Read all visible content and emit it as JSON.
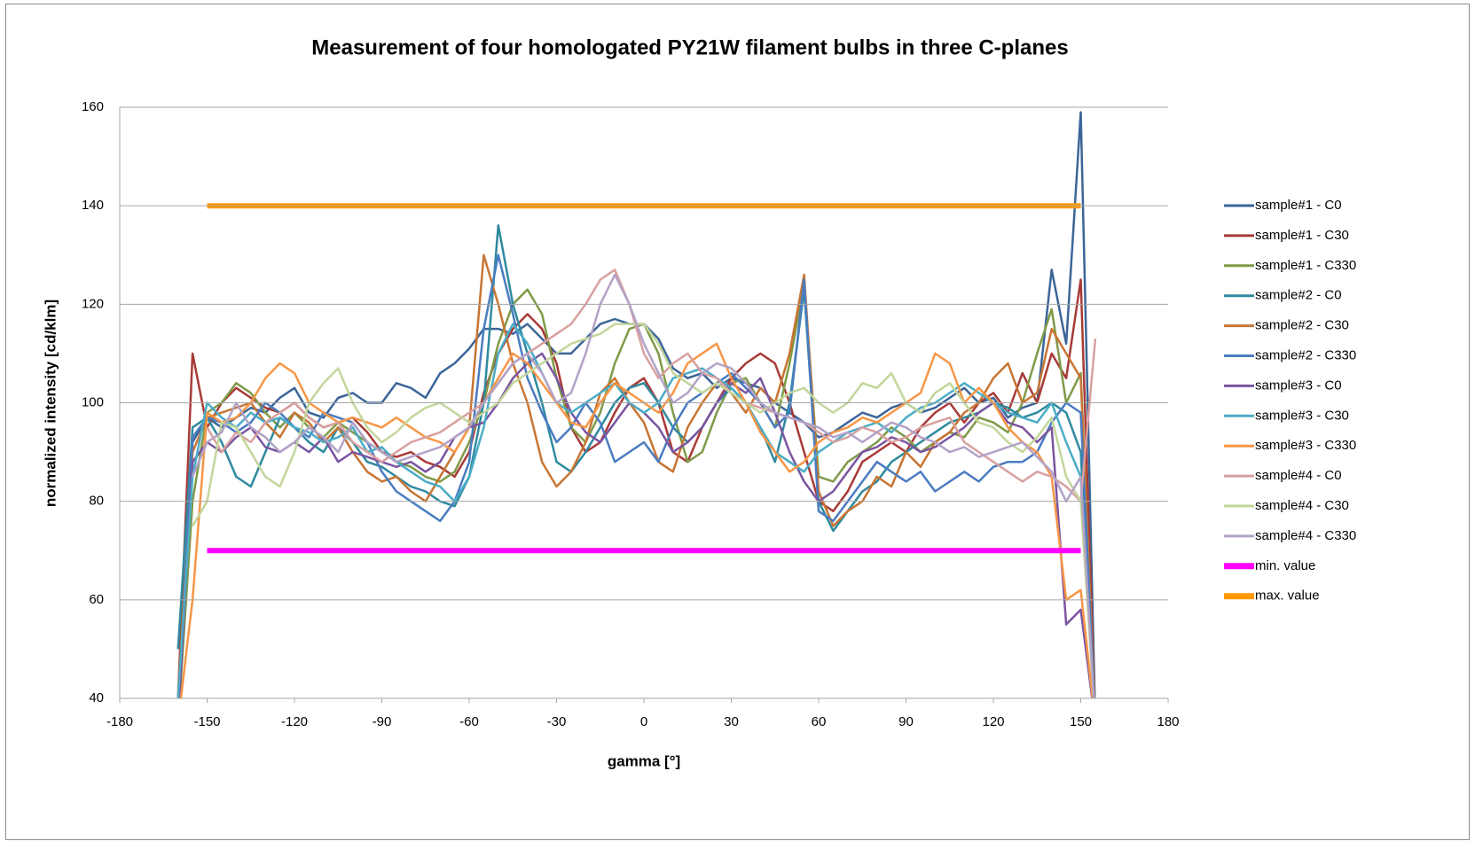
{
  "chart_data": {
    "type": "line",
    "title": "Measurement of four homologated PY21W filament bulbs in three C-planes",
    "x_label": "gamma [°]",
    "y_label": "normalized intensity [cd/klm]",
    "xlim": [
      -180,
      180
    ],
    "xticks": [
      -180,
      -150,
      -120,
      -90,
      -60,
      -30,
      0,
      30,
      60,
      90,
      120,
      150,
      180
    ],
    "ylim": [
      40,
      160
    ],
    "yticks": [
      40,
      60,
      80,
      100,
      120,
      140,
      160
    ],
    "grid": true,
    "legend": "right",
    "x": [
      -160,
      -155,
      -150,
      -145,
      -140,
      -135,
      -130,
      -125,
      -120,
      -115,
      -110,
      -105,
      -100,
      -95,
      -90,
      -85,
      -80,
      -75,
      -70,
      -65,
      -60,
      -55,
      -50,
      -45,
      -40,
      -35,
      -30,
      -25,
      -20,
      -15,
      -10,
      -5,
      0,
      5,
      10,
      15,
      20,
      25,
      30,
      35,
      40,
      45,
      50,
      55,
      60,
      65,
      70,
      75,
      80,
      85,
      90,
      95,
      100,
      105,
      110,
      115,
      120,
      125,
      130,
      135,
      140,
      145,
      150,
      155
    ],
    "series": [
      {
        "name": "sample#1 - C0",
        "color": "#3c6598",
        "values": [
          35,
          92,
          97,
          95,
          97,
          99,
          98,
          101,
          103,
          98,
          97,
          101,
          102,
          100,
          100,
          104,
          103,
          101,
          106,
          108,
          111,
          115,
          115,
          114,
          116,
          113,
          110,
          110,
          113,
          116,
          117,
          116,
          116,
          113,
          107,
          105,
          106,
          103,
          105,
          104,
          103,
          100,
          98,
          96,
          93,
          94,
          96,
          98,
          97,
          99,
          100,
          98,
          99,
          101,
          103,
          100,
          101,
          97,
          99,
          100,
          127,
          112,
          159,
          35
        ]
      },
      {
        "name": "sample#1 - C30",
        "color": "#a83a37",
        "values": [
          40,
          110,
          95,
          100,
          103,
          101,
          99,
          98,
          100,
          97,
          95,
          96,
          97,
          94,
          90,
          89,
          90,
          88,
          87,
          85,
          90,
          102,
          110,
          115,
          118,
          115,
          108,
          95,
          90,
          92,
          98,
          103,
          105,
          100,
          90,
          88,
          95,
          100,
          105,
          108,
          110,
          108,
          100,
          90,
          80,
          78,
          82,
          88,
          90,
          92,
          90,
          95,
          98,
          100,
          96,
          100,
          102,
          98,
          106,
          100,
          110,
          105,
          125,
          35
        ]
      },
      {
        "name": "sample#1 - C330",
        "color": "#7f9a48",
        "values": [
          35,
          80,
          98,
          100,
          104,
          102,
          98,
          95,
          98,
          95,
          93,
          96,
          94,
          92,
          90,
          88,
          87,
          85,
          84,
          86,
          92,
          100,
          112,
          120,
          123,
          118,
          105,
          95,
          92,
          98,
          108,
          115,
          116,
          110,
          98,
          88,
          90,
          98,
          104,
          105,
          100,
          95,
          108,
          124,
          85,
          84,
          88,
          90,
          92,
          95,
          93,
          90,
          92,
          94,
          93,
          97,
          96,
          94,
          100,
          110,
          119,
          100,
          106,
          35
        ]
      },
      {
        "name": "sample#2 - C0",
        "color": "#2f8a9f",
        "values": [
          50,
          95,
          97,
          92,
          85,
          83,
          90,
          97,
          95,
          92,
          90,
          95,
          92,
          88,
          87,
          85,
          83,
          82,
          80,
          79,
          85,
          100,
          136,
          120,
          110,
          100,
          88,
          86,
          90,
          95,
          100,
          103,
          104,
          100,
          95,
          92,
          95,
          100,
          103,
          100,
          95,
          88,
          100,
          123,
          80,
          74,
          78,
          82,
          84,
          88,
          90,
          92,
          94,
          96,
          97,
          98,
          100,
          99,
          97,
          98,
          100,
          98,
          90,
          35
        ]
      },
      {
        "name": "sample#2 - C30",
        "color": "#c87533",
        "values": [
          40,
          90,
          97,
          98,
          99,
          100,
          96,
          93,
          98,
          96,
          92,
          95,
          90,
          86,
          84,
          85,
          82,
          80,
          85,
          90,
          95,
          130,
          120,
          108,
          100,
          88,
          83,
          86,
          92,
          102,
          105,
          100,
          96,
          88,
          86,
          95,
          100,
          104,
          102,
          98,
          103,
          100,
          110,
          126,
          82,
          75,
          78,
          80,
          85,
          83,
          90,
          87,
          92,
          94,
          98,
          100,
          105,
          108,
          100,
          102,
          115,
          110,
          105,
          35
        ]
      },
      {
        "name": "sample#2 - C330",
        "color": "#4a7cc0",
        "values": [
          35,
          93,
          97,
          96,
          94,
          96,
          100,
          98,
          95,
          93,
          98,
          97,
          96,
          92,
          86,
          82,
          80,
          78,
          76,
          80,
          88,
          115,
          130,
          118,
          105,
          98,
          92,
          95,
          100,
          96,
          88,
          90,
          92,
          88,
          95,
          100,
          102,
          104,
          106,
          103,
          100,
          95,
          98,
          125,
          78,
          76,
          80,
          84,
          88,
          86,
          84,
          86,
          82,
          84,
          86,
          84,
          87,
          88,
          88,
          90,
          96,
          100,
          98,
          35
        ]
      },
      {
        "name": "sample#3 - C0",
        "color": "#7a55a0",
        "values": [
          35,
          88,
          92,
          90,
          93,
          95,
          91,
          90,
          92,
          90,
          93,
          88,
          90,
          89,
          88,
          87,
          88,
          86,
          88,
          93,
          95,
          96,
          100,
          105,
          108,
          110,
          105,
          98,
          94,
          92,
          96,
          100,
          98,
          95,
          90,
          92,
          95,
          100,
          104,
          102,
          105,
          98,
          90,
          84,
          80,
          82,
          86,
          90,
          91,
          93,
          92,
          90,
          91,
          93,
          95,
          98,
          100,
          96,
          95,
          92,
          95,
          55,
          58,
          35
        ]
      },
      {
        "name": "sample#3 - C30",
        "color": "#4bacc6",
        "values": [
          40,
          85,
          100,
          97,
          95,
          98,
          96,
          97,
          95,
          94,
          92,
          93,
          95,
          90,
          91,
          88,
          86,
          84,
          83,
          80,
          85,
          95,
          110,
          116,
          112,
          106,
          100,
          98,
          100,
          102,
          104,
          100,
          98,
          100,
          105,
          106,
          107,
          105,
          103,
          100,
          95,
          90,
          88,
          86,
          90,
          92,
          94,
          95,
          96,
          94,
          97,
          99,
          100,
          102,
          104,
          102,
          100,
          98,
          97,
          96,
          100,
          92,
          85,
          35
        ]
      },
      {
        "name": "sample#3 - C330",
        "color": "#f79646",
        "values": [
          35,
          60,
          98,
          96,
          97,
          100,
          105,
          108,
          106,
          100,
          98,
          96,
          97,
          96,
          95,
          97,
          95,
          93,
          92,
          90,
          95,
          100,
          105,
          110,
          108,
          104,
          100,
          96,
          95,
          100,
          104,
          102,
          100,
          98,
          102,
          108,
          110,
          112,
          105,
          100,
          94,
          90,
          86,
          88,
          92,
          94,
          95,
          97,
          96,
          98,
          100,
          102,
          110,
          108,
          100,
          103,
          100,
          95,
          92,
          90,
          85,
          60,
          62,
          35
        ]
      },
      {
        "name": "sample#4 - C0",
        "color": "#d9a0a0",
        "values": [
          null,
          null,
          95,
          90,
          94,
          92,
          96,
          98,
          100,
          97,
          95,
          96,
          92,
          90,
          88,
          90,
          92,
          93,
          94,
          96,
          98,
          100,
          104,
          108,
          110,
          112,
          114,
          116,
          120,
          125,
          127,
          120,
          110,
          105,
          108,
          110,
          106,
          105,
          102,
          100,
          99,
          98,
          97,
          96,
          94,
          92,
          93,
          95,
          94,
          92,
          93,
          95,
          96,
          97,
          92,
          90,
          88,
          86,
          84,
          86,
          85,
          83,
          80,
          113
        ]
      },
      {
        "name": "sample#4 - C30",
        "color": "#c3d69b",
        "values": [
          null,
          75,
          80,
          96,
          95,
          90,
          85,
          83,
          90,
          100,
          104,
          107,
          100,
          95,
          92,
          94,
          97,
          99,
          100,
          98,
          96,
          98,
          100,
          104,
          106,
          108,
          110,
          112,
          113,
          114,
          116,
          116,
          116,
          112,
          106,
          104,
          102,
          104,
          102,
          100,
          98,
          100,
          102,
          103,
          100,
          98,
          100,
          104,
          103,
          106,
          100,
          98,
          102,
          104,
          100,
          96,
          95,
          92,
          90,
          93,
          97,
          85,
          80,
          35
        ]
      },
      {
        "name": "sample#4 - C330",
        "color": "#b3a2c7",
        "values": [
          null,
          85,
          92,
          94,
          100,
          95,
          93,
          90,
          92,
          95,
          93,
          90,
          96,
          92,
          90,
          88,
          89,
          90,
          91,
          93,
          95,
          100,
          104,
          108,
          110,
          106,
          100,
          102,
          110,
          120,
          126,
          120,
          112,
          106,
          100,
          102,
          106,
          108,
          107,
          104,
          100,
          98,
          97,
          96,
          95,
          93,
          94,
          92,
          94,
          96,
          95,
          93,
          92,
          90,
          91,
          89,
          90,
          91,
          92,
          89,
          86,
          80,
          85,
          35
        ]
      },
      {
        "name": "min. value",
        "color": "#ff00ff",
        "x": [
          -150,
          150
        ],
        "values": [
          70,
          70
        ]
      },
      {
        "name": "max. value",
        "color": "#ff9900",
        "x": [
          -150,
          150
        ],
        "values": [
          140,
          140
        ]
      }
    ]
  }
}
